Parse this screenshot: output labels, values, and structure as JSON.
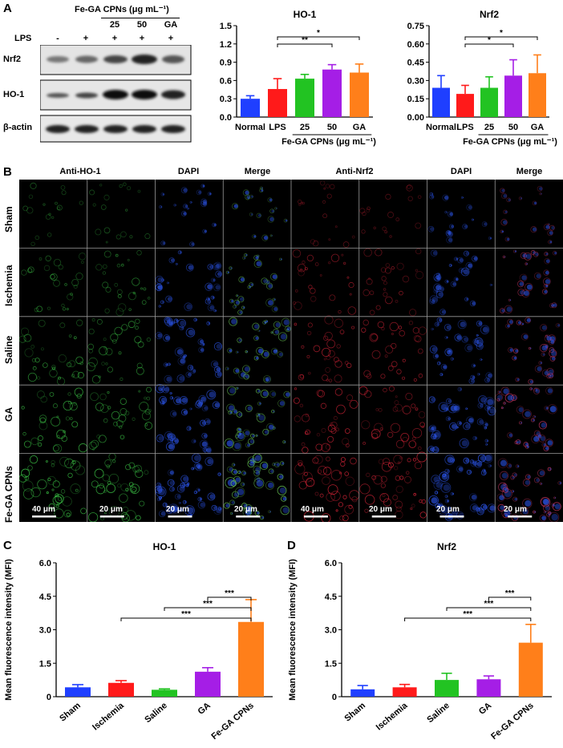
{
  "panels": {
    "A": "A",
    "B": "B",
    "C": "C",
    "D": "D"
  },
  "blot": {
    "header_group": "Fe-GA CPNs (μg mL⁻¹)",
    "lps_label": "LPS",
    "lane_conc": [
      "",
      "",
      "25",
      "50",
      "GA"
    ],
    "lane_lps": [
      "-",
      "+",
      "+",
      "+",
      "+"
    ],
    "rows": [
      "Nrf2",
      "HO-1",
      "β-actin"
    ]
  },
  "micro": {
    "col_headers": [
      "Anti-HO-1",
      "DAPI",
      "Merge",
      "Anti-Nrf2",
      "DAPI",
      "Merge"
    ],
    "row_headers": [
      "Sham",
      "Ischemia",
      "Saline",
      "GA",
      "Fe-GA CPNs"
    ],
    "scale_bars": [
      "40 μm",
      "20 μm",
      "20 μm",
      "20 μm",
      "40 μm",
      "20 μm",
      "20 μm",
      "20 μm"
    ]
  },
  "chart_data": [
    {
      "id": "A-HO1",
      "type": "bar",
      "title": "HO-1",
      "categories": [
        "Normal",
        "LPS",
        "25",
        "50",
        "GA"
      ],
      "values": [
        0.3,
        0.46,
        0.63,
        0.78,
        0.73
      ],
      "errors": [
        0.05,
        0.17,
        0.07,
        0.08,
        0.14
      ],
      "colors": [
        "#1f3fff",
        "#ff1a1a",
        "#22c322",
        "#a51ee6",
        "#ff7f1a"
      ],
      "ylim": [
        0,
        1.5
      ],
      "yticks": [
        "0.0",
        "0.3",
        "0.6",
        "0.9",
        "1.2",
        "1.5"
      ],
      "xgroup_label": "Fe-GA CPNs (μg mL⁻¹)",
      "sig": [
        {
          "from": 1,
          "to": 3,
          "label": "**"
        },
        {
          "from": 1,
          "to": 4,
          "label": "*"
        }
      ]
    },
    {
      "id": "A-Nrf2",
      "type": "bar",
      "title": "Nrf2",
      "categories": [
        "Normal",
        "LPS",
        "25",
        "50",
        "GA"
      ],
      "values": [
        0.24,
        0.19,
        0.24,
        0.34,
        0.36
      ],
      "errors": [
        0.1,
        0.07,
        0.09,
        0.13,
        0.15
      ],
      "colors": [
        "#1f3fff",
        "#ff1a1a",
        "#22c322",
        "#a51ee6",
        "#ff7f1a"
      ],
      "ylim": [
        0,
        0.75
      ],
      "yticks": [
        "0.00",
        "0.15",
        "0.30",
        "0.45",
        "0.60",
        "0.75"
      ],
      "xgroup_label": "Fe-GA CPNs (μg mL⁻¹)",
      "sig": [
        {
          "from": 1,
          "to": 3,
          "label": "*"
        },
        {
          "from": 1,
          "to": 4,
          "label": "*"
        }
      ]
    },
    {
      "id": "C",
      "type": "bar",
      "title": "HO-1",
      "categories": [
        "Sham",
        "Ischemia",
        "Saline",
        "GA",
        "Fe-GA CPNs"
      ],
      "values": [
        0.42,
        0.62,
        0.31,
        1.12,
        3.35
      ],
      "errors": [
        0.12,
        0.1,
        0.04,
        0.18,
        1.0
      ],
      "colors": [
        "#1f3fff",
        "#ff1a1a",
        "#22c322",
        "#a51ee6",
        "#ff7f1a"
      ],
      "ylim": [
        0,
        6.0
      ],
      "yticks": [
        "0",
        "1.5",
        "3.0",
        "4.5",
        "6.0"
      ],
      "ylabel": "Mean fluorescence intensity (MFI)",
      "sig": [
        {
          "from": 1,
          "to": 4,
          "label": "***"
        },
        {
          "from": 2,
          "to": 4,
          "label": "***"
        },
        {
          "from": 3,
          "to": 4,
          "label": "***"
        }
      ]
    },
    {
      "id": "D",
      "type": "bar",
      "title": "Nrf2",
      "categories": [
        "Sham",
        "Ischemia",
        "Saline",
        "GA",
        "Fe-GA CPNs"
      ],
      "values": [
        0.33,
        0.42,
        0.75,
        0.78,
        2.42
      ],
      "errors": [
        0.17,
        0.13,
        0.3,
        0.15,
        0.82
      ],
      "colors": [
        "#1f3fff",
        "#ff1a1a",
        "#22c322",
        "#a51ee6",
        "#ff7f1a"
      ],
      "ylim": [
        0,
        6.0
      ],
      "yticks": [
        "0",
        "1.5",
        "3.0",
        "4.5",
        "6.0"
      ],
      "ylabel": "Mean fluorescence intensity (MFI)",
      "sig": [
        {
          "from": 1,
          "to": 4,
          "label": "***"
        },
        {
          "from": 2,
          "to": 4,
          "label": "***"
        },
        {
          "from": 3,
          "to": 4,
          "label": "***"
        }
      ]
    }
  ]
}
